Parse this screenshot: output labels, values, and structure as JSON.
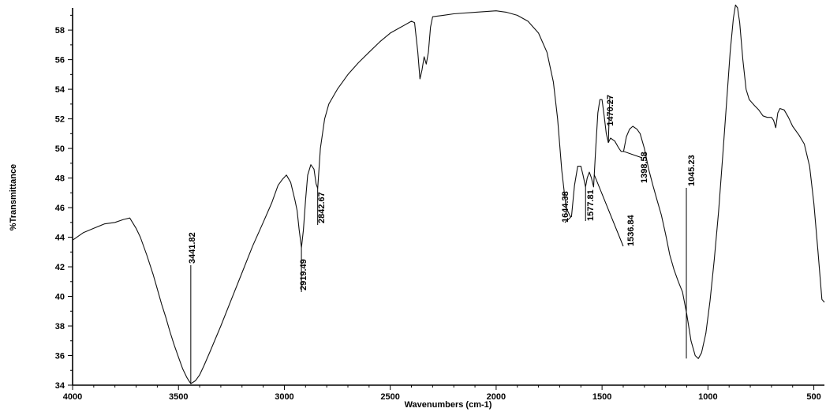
{
  "chart_data": {
    "type": "line",
    "xlabel": "Wavenumbers (cm-1)",
    "ylabel": "%Transmittance",
    "xlim": [
      4000,
      450
    ],
    "ylim": [
      34,
      59.5
    ],
    "x_ticks": [
      4000,
      3500,
      3000,
      2500,
      2000,
      1500,
      1000,
      500
    ],
    "x_tick_labels": [
      "4000",
      "3500",
      "3000",
      "2500",
      "2000",
      "1500",
      "1000",
      "500"
    ],
    "y_ticks": [
      34,
      36,
      38,
      40,
      42,
      44,
      46,
      48,
      50,
      52,
      54,
      56,
      58
    ],
    "y_tick_labels": [
      "34",
      "36",
      "38",
      "40",
      "42",
      "44",
      "46",
      "48",
      "50",
      "52",
      "54",
      "56",
      "58"
    ],
    "grid": false,
    "series": [
      {
        "color": "#111111",
        "points": [
          [
            4000,
            43.8
          ],
          [
            3950,
            44.3
          ],
          [
            3900,
            44.6
          ],
          [
            3850,
            44.9
          ],
          [
            3800,
            45.0
          ],
          [
            3760,
            45.2
          ],
          [
            3730,
            45.3
          ],
          [
            3700,
            44.6
          ],
          [
            3680,
            44.0
          ],
          [
            3650,
            42.8
          ],
          [
            3620,
            41.5
          ],
          [
            3600,
            40.5
          ],
          [
            3580,
            39.5
          ],
          [
            3560,
            38.6
          ],
          [
            3540,
            37.6
          ],
          [
            3520,
            36.7
          ],
          [
            3500,
            35.9
          ],
          [
            3480,
            35.1
          ],
          [
            3460,
            34.5
          ],
          [
            3441.82,
            34.1
          ],
          [
            3420,
            34.3
          ],
          [
            3400,
            34.7
          ],
          [
            3380,
            35.3
          ],
          [
            3350,
            36.3
          ],
          [
            3300,
            38.0
          ],
          [
            3250,
            39.8
          ],
          [
            3200,
            41.6
          ],
          [
            3150,
            43.4
          ],
          [
            3100,
            45.0
          ],
          [
            3060,
            46.3
          ],
          [
            3030,
            47.5
          ],
          [
            3010,
            47.9
          ],
          [
            2990,
            48.2
          ],
          [
            2970,
            47.7
          ],
          [
            2950,
            46.5
          ],
          [
            2940,
            45.8
          ],
          [
            2930,
            44.5
          ],
          [
            2919.49,
            43.3
          ],
          [
            2910,
            44.5
          ],
          [
            2900,
            46.5
          ],
          [
            2890,
            48.2
          ],
          [
            2875,
            48.9
          ],
          [
            2860,
            48.6
          ],
          [
            2850,
            47.6
          ],
          [
            2842.67,
            47.3
          ],
          [
            2830,
            50.0
          ],
          [
            2810,
            52.0
          ],
          [
            2790,
            53.0
          ],
          [
            2750,
            54.0
          ],
          [
            2700,
            55.0
          ],
          [
            2650,
            55.8
          ],
          [
            2600,
            56.5
          ],
          [
            2550,
            57.2
          ],
          [
            2500,
            57.8
          ],
          [
            2450,
            58.2
          ],
          [
            2400,
            58.6
          ],
          [
            2385,
            58.5
          ],
          [
            2370,
            56.5
          ],
          [
            2360,
            54.7
          ],
          [
            2350,
            55.3
          ],
          [
            2340,
            56.2
          ],
          [
            2330,
            55.7
          ],
          [
            2320,
            56.5
          ],
          [
            2310,
            58.2
          ],
          [
            2300,
            58.9
          ],
          [
            2250,
            59.0
          ],
          [
            2200,
            59.1
          ],
          [
            2100,
            59.2
          ],
          [
            2000,
            59.3
          ],
          [
            1950,
            59.2
          ],
          [
            1900,
            59.0
          ],
          [
            1850,
            58.6
          ],
          [
            1800,
            57.8
          ],
          [
            1760,
            56.5
          ],
          [
            1730,
            54.5
          ],
          [
            1710,
            52.0
          ],
          [
            1690,
            48.5
          ],
          [
            1670,
            46.0
          ],
          [
            1650,
            45.4
          ],
          [
            1644.38,
            45.4
          ],
          [
            1630,
            47.5
          ],
          [
            1615,
            48.8
          ],
          [
            1600,
            48.8
          ],
          [
            1590,
            48.2
          ],
          [
            1577.81,
            47.4
          ],
          [
            1570,
            48.0
          ],
          [
            1560,
            48.4
          ],
          [
            1550,
            48.0
          ],
          [
            1540,
            47.4
          ],
          [
            1530,
            50.0
          ],
          [
            1520,
            52.4
          ],
          [
            1510,
            53.3
          ],
          [
            1500,
            53.3
          ],
          [
            1490,
            52.2
          ],
          [
            1480,
            51.0
          ],
          [
            1470.27,
            50.4
          ],
          [
            1460,
            50.7
          ],
          [
            1440,
            50.5
          ],
          [
            1420,
            50.0
          ],
          [
            1410,
            49.8
          ],
          [
            1398.58,
            49.8
          ],
          [
            1385,
            50.8
          ],
          [
            1370,
            51.3
          ],
          [
            1355,
            51.5
          ],
          [
            1335,
            51.3
          ],
          [
            1320,
            51.0
          ],
          [
            1300,
            50.0
          ],
          [
            1280,
            48.6
          ],
          [
            1260,
            47.5
          ],
          [
            1240,
            46.5
          ],
          [
            1220,
            45.5
          ],
          [
            1200,
            44.2
          ],
          [
            1180,
            42.8
          ],
          [
            1160,
            41.8
          ],
          [
            1140,
            41.0
          ],
          [
            1120,
            40.3
          ],
          [
            1100,
            38.8
          ],
          [
            1080,
            37.0
          ],
          [
            1060,
            36.0
          ],
          [
            1045.23,
            35.8
          ],
          [
            1030,
            36.2
          ],
          [
            1010,
            37.5
          ],
          [
            990,
            39.7
          ],
          [
            970,
            42.5
          ],
          [
            950,
            45.7
          ],
          [
            930,
            49.5
          ],
          [
            910,
            53.5
          ],
          [
            895,
            56.5
          ],
          [
            880,
            58.8
          ],
          [
            870,
            59.7
          ],
          [
            860,
            59.5
          ],
          [
            850,
            58.5
          ],
          [
            835,
            56.0
          ],
          [
            820,
            54.0
          ],
          [
            805,
            53.3
          ],
          [
            780,
            52.9
          ],
          [
            760,
            52.6
          ],
          [
            740,
            52.2
          ],
          [
            720,
            52.1
          ],
          [
            700,
            52.1
          ],
          [
            690,
            51.9
          ],
          [
            680,
            51.4
          ],
          [
            670,
            52.4
          ],
          [
            660,
            52.7
          ],
          [
            640,
            52.6
          ],
          [
            620,
            52.1
          ],
          [
            600,
            51.5
          ],
          [
            570,
            50.9
          ],
          [
            545,
            50.3
          ],
          [
            520,
            48.8
          ],
          [
            500,
            46.3
          ],
          [
            480,
            43.0
          ],
          [
            462,
            39.8
          ],
          [
            450,
            39.6
          ]
        ]
      }
    ],
    "peak_labels": [
      {
        "x": 3441.82,
        "text": "3441.82"
      },
      {
        "x": 2919.49,
        "text": "2919.49"
      },
      {
        "x": 2842.67,
        "text": "2842.67"
      },
      {
        "x": 1644.38,
        "text": "1644.38"
      },
      {
        "x": 1577.81,
        "text": "1577.81"
      },
      {
        "x": 1536.84,
        "text": "1536.84"
      },
      {
        "x": 1470.27,
        "text": "1470.27"
      },
      {
        "x": 1398.58,
        "text": "1398.58"
      },
      {
        "x": 1045.23,
        "text": "1045.23"
      }
    ]
  }
}
